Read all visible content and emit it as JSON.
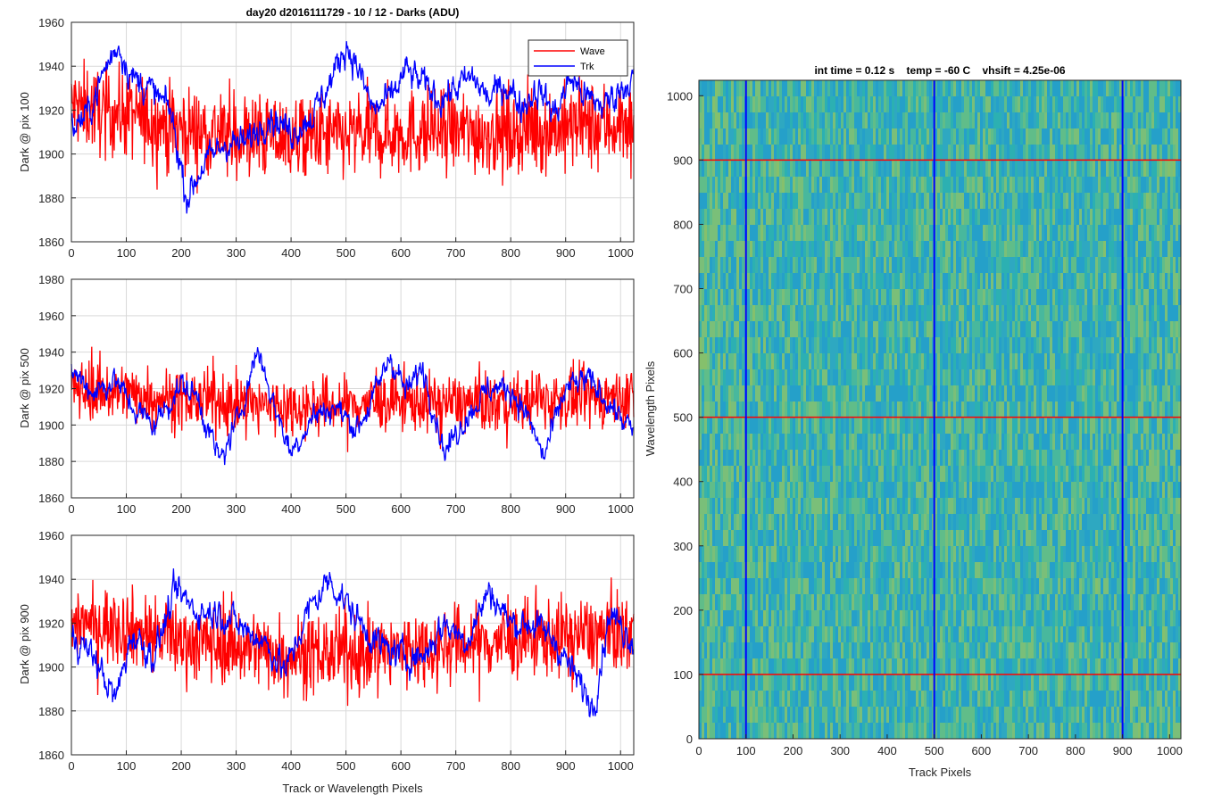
{
  "figure_title": "day20 d2016111729 - 10 / 12 - Darks (ADU)",
  "colors": {
    "wave": "#ff0000",
    "trk": "#0000ff",
    "grid": "#d9d9d9",
    "axis": "#262626"
  },
  "chart_data": [
    {
      "type": "line",
      "title": "day20 d2016111729 - 10 / 12 - Darks (ADU)",
      "xlabel": "",
      "ylabel": "Dark @ pix 100",
      "xlim": [
        0,
        1024
      ],
      "ylim": [
        1860,
        1960
      ],
      "xticks": [
        0,
        100,
        200,
        300,
        400,
        500,
        600,
        700,
        800,
        900,
        1000
      ],
      "yticks": [
        1860,
        1880,
        1900,
        1920,
        1940,
        1960
      ],
      "grid": true,
      "legend": {
        "placement": "top-right",
        "entries": [
          "Wave",
          "Trk"
        ]
      },
      "series": [
        {
          "name": "Wave",
          "color": "#ff0000",
          "mean": 1912,
          "noise": 11,
          "x": [
            0,
            100,
            200,
            300,
            400,
            500,
            600,
            700,
            800,
            900,
            1024
          ],
          "trend": [
            1922,
            1918,
            1912,
            1908,
            1907,
            1908,
            1910,
            1910,
            1910,
            1912,
            1914
          ]
        },
        {
          "name": "Trk",
          "color": "#0000ff",
          "noise": 3,
          "x": [
            0,
            30,
            60,
            85,
            110,
            140,
            180,
            210,
            240,
            280,
            320,
            360,
            400,
            440,
            470,
            500,
            520,
            550,
            580,
            610,
            640,
            670,
            700,
            730,
            760,
            790,
            820,
            850,
            880,
            910,
            940,
            970,
            1000,
            1024
          ],
          "trend": [
            1912,
            1918,
            1938,
            1950,
            1935,
            1930,
            1920,
            1880,
            1895,
            1905,
            1905,
            1918,
            1910,
            1918,
            1932,
            1950,
            1940,
            1920,
            1925,
            1938,
            1932,
            1925,
            1930,
            1935,
            1925,
            1932,
            1922,
            1930,
            1918,
            1935,
            1925,
            1922,
            1930,
            1935
          ]
        }
      ]
    },
    {
      "type": "line",
      "title": "",
      "xlabel": "",
      "ylabel": "Dark @ pix 500",
      "xlim": [
        0,
        1024
      ],
      "ylim": [
        1860,
        1980
      ],
      "xticks": [
        0,
        100,
        200,
        300,
        400,
        500,
        600,
        700,
        800,
        900,
        1000
      ],
      "yticks": [
        1860,
        1880,
        1900,
        1920,
        1940,
        1960,
        1980
      ],
      "grid": true,
      "series": [
        {
          "name": "Wave",
          "color": "#ff0000",
          "mean": 1913,
          "noise": 9,
          "x": [
            0,
            100,
            200,
            300,
            400,
            500,
            600,
            700,
            800,
            900,
            1024
          ],
          "trend": [
            1920,
            1918,
            1914,
            1912,
            1910,
            1911,
            1913,
            1912,
            1912,
            1914,
            1916
          ]
        },
        {
          "name": "Trk",
          "color": "#0000ff",
          "noise": 3,
          "x": [
            0,
            40,
            80,
            110,
            150,
            200,
            230,
            270,
            300,
            340,
            370,
            400,
            440,
            480,
            520,
            550,
            580,
            610,
            640,
            680,
            720,
            760,
            800,
            830,
            860,
            900,
            940,
            980,
            1024
          ],
          "trend": [
            1930,
            1918,
            1925,
            1910,
            1900,
            1922,
            1915,
            1880,
            1900,
            1942,
            1910,
            1885,
            1905,
            1910,
            1898,
            1915,
            1938,
            1918,
            1932,
            1885,
            1905,
            1920,
            1920,
            1905,
            1882,
            1920,
            1925,
            1912,
            1895
          ]
        }
      ]
    },
    {
      "type": "line",
      "title": "",
      "xlabel": "Track or Wavelength Pixels",
      "ylabel": "Dark @ pix 900",
      "xlim": [
        0,
        1024
      ],
      "ylim": [
        1860,
        1960
      ],
      "xticks": [
        0,
        100,
        200,
        300,
        400,
        500,
        600,
        700,
        800,
        900,
        1000
      ],
      "yticks": [
        1860,
        1880,
        1900,
        1920,
        1940,
        1960
      ],
      "grid": true,
      "series": [
        {
          "name": "Wave",
          "color": "#ff0000",
          "mean": 1913,
          "noise": 10,
          "x": [
            0,
            100,
            200,
            300,
            400,
            500,
            600,
            700,
            800,
            900,
            1024
          ],
          "trend": [
            1922,
            1918,
            1912,
            1910,
            1906,
            1906,
            1908,
            1910,
            1912,
            1914,
            1916
          ]
        },
        {
          "name": "Trk",
          "color": "#0000ff",
          "noise": 3,
          "x": [
            0,
            40,
            80,
            110,
            150,
            190,
            230,
            270,
            310,
            350,
            390,
            430,
            470,
            520,
            560,
            600,
            640,
            680,
            720,
            760,
            800,
            840,
            880,
            920,
            950,
            980,
            1024
          ],
          "trend": [
            1915,
            1905,
            1885,
            1915,
            1905,
            1935,
            1925,
            1925,
            1918,
            1912,
            1898,
            1925,
            1940,
            1922,
            1910,
            1905,
            1905,
            1920,
            1912,
            1935,
            1920,
            1920,
            1912,
            1895,
            1882,
            1925,
            1912
          ]
        }
      ]
    },
    {
      "type": "heatmap",
      "title": "int time = 0.12 s    temp = -60 C    vhsift = 4.25e-06",
      "xlabel": "Track Pixels",
      "ylabel": "Wavelength Pixels",
      "xlim": [
        0,
        1024
      ],
      "ylim": [
        0,
        1024
      ],
      "xticks": [
        0,
        100,
        200,
        300,
        400,
        500,
        600,
        700,
        800,
        900,
        1000
      ],
      "yticks": [
        0,
        100,
        200,
        300,
        400,
        500,
        600,
        700,
        800,
        900,
        1000
      ],
      "colormap": "parula",
      "vertical_markers": {
        "color": "#0000ff",
        "x": [
          100,
          500,
          900
        ]
      },
      "horizontal_markers": {
        "color": "#ff0000",
        "y": [
          100,
          500,
          900
        ]
      }
    }
  ]
}
